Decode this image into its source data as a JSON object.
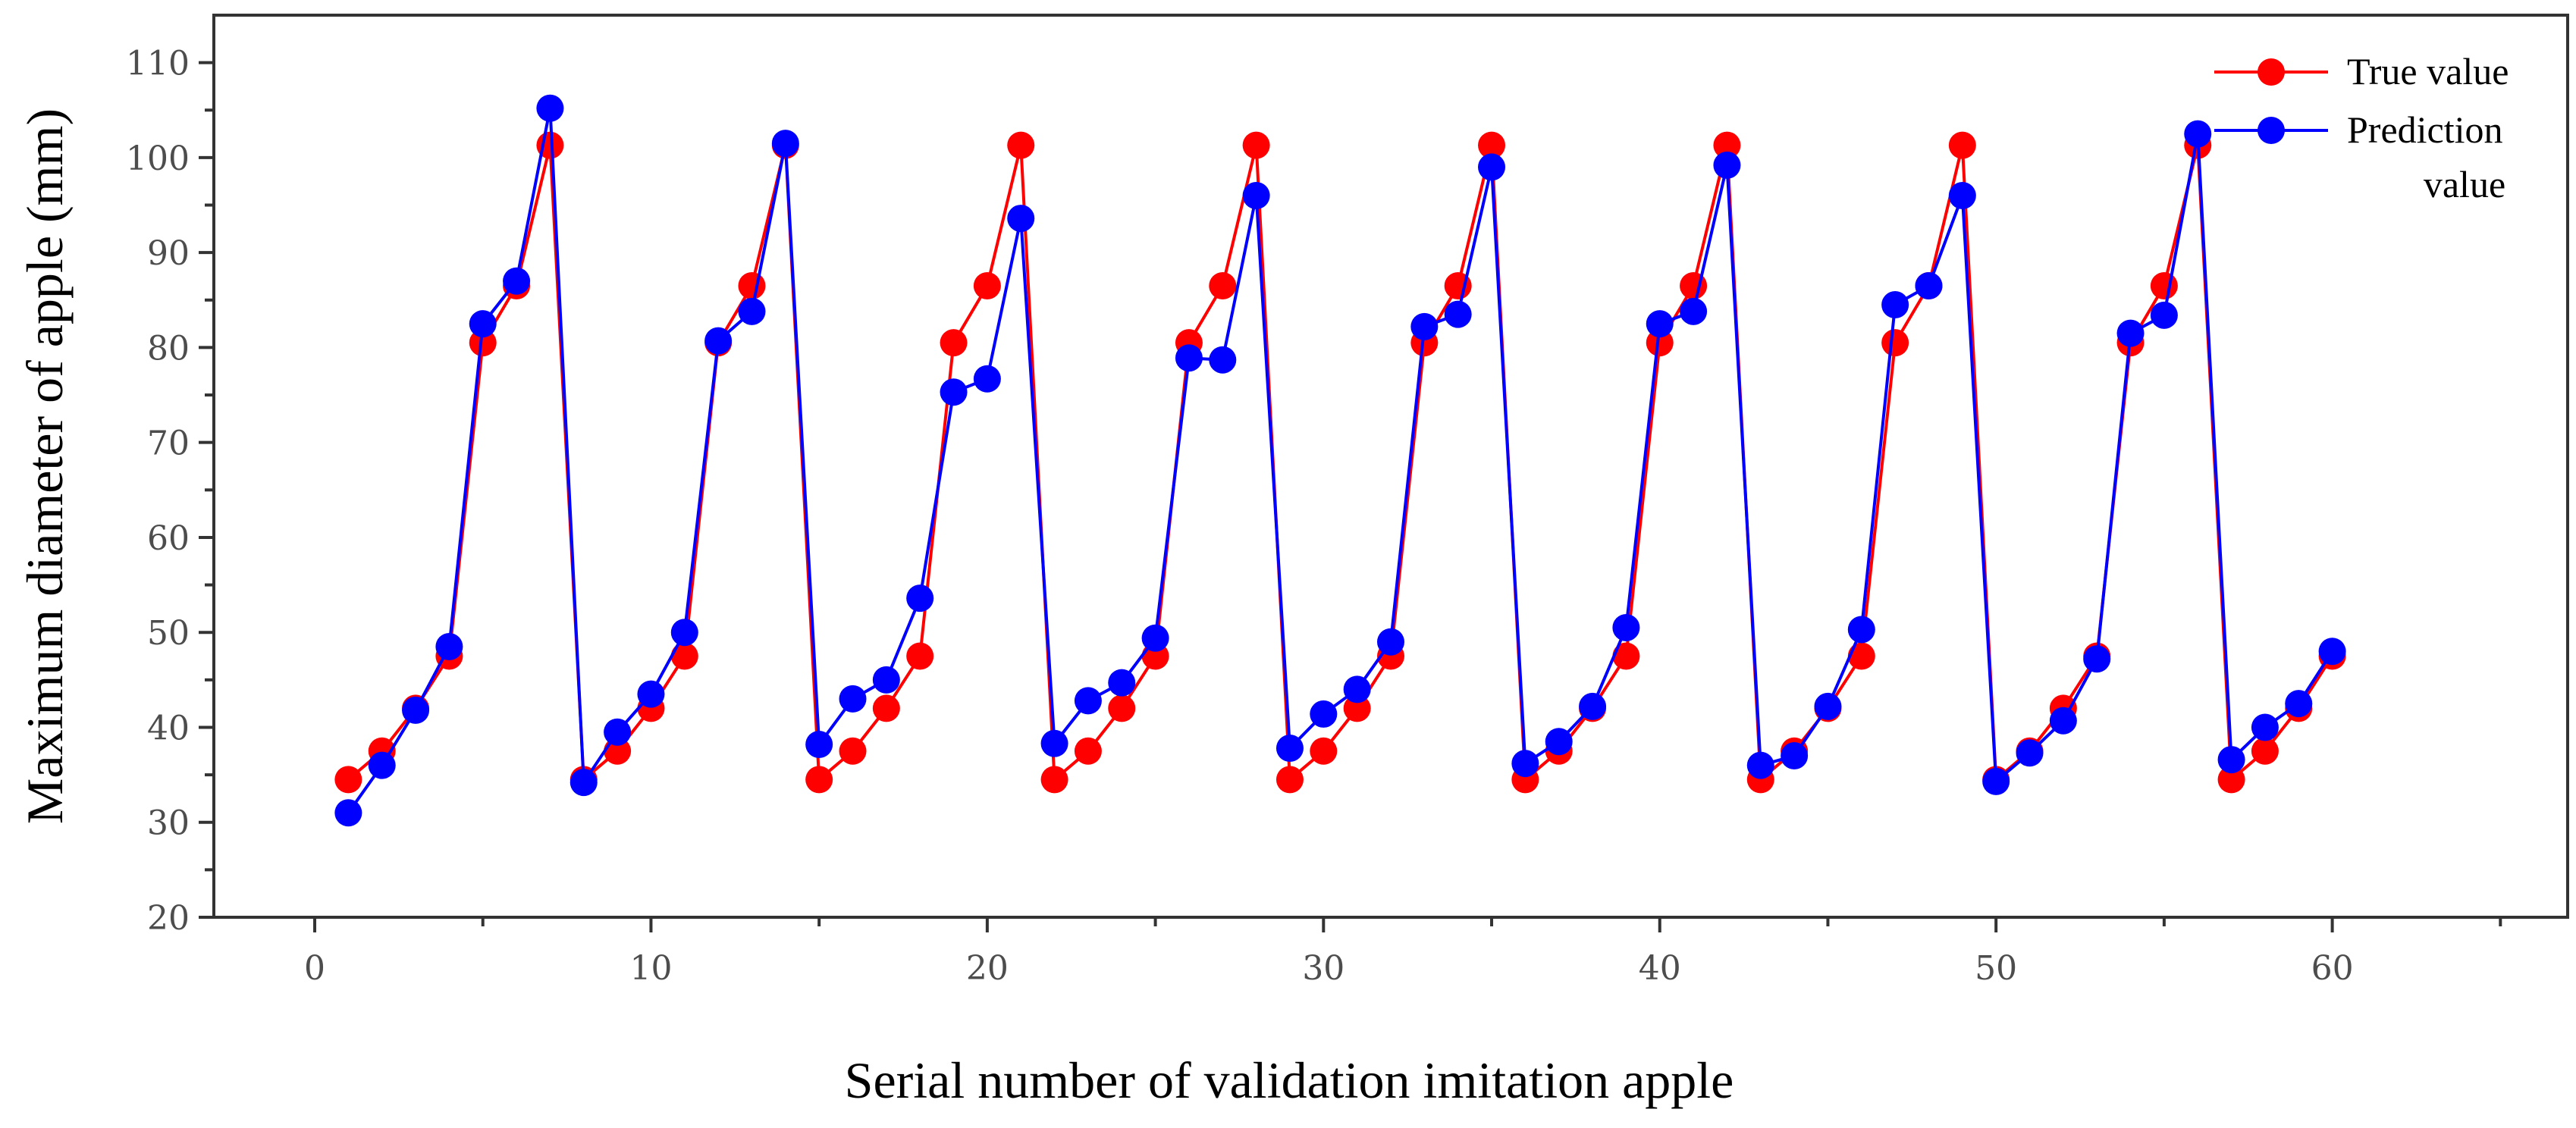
{
  "chart_data": {
    "type": "line",
    "title": "",
    "xlabel": "Serial number of validation imitation apple",
    "ylabel": "Maximum diameter of apple (mm)",
    "xlim": [
      -3,
      67
    ],
    "ylim": [
      20,
      115
    ],
    "xticks": [
      0,
      10,
      20,
      30,
      40,
      50,
      60
    ],
    "xminor_ticks": [
      5,
      15,
      25,
      35,
      45,
      55,
      65
    ],
    "yticks": [
      20,
      30,
      40,
      50,
      60,
      70,
      80,
      90,
      100,
      110
    ],
    "grid": false,
    "legend_position": "top-right",
    "x": [
      1,
      2,
      3,
      4,
      5,
      6,
      7,
      8,
      9,
      10,
      11,
      12,
      13,
      14,
      15,
      16,
      17,
      18,
      19,
      20,
      21,
      22,
      23,
      24,
      25,
      26,
      27,
      28,
      29,
      30,
      31,
      32,
      33,
      34,
      35,
      36,
      37,
      38,
      39,
      40,
      41,
      42,
      43,
      44,
      45,
      46,
      47,
      48,
      49,
      50,
      51,
      52,
      53,
      54,
      55,
      56,
      57,
      58,
      59,
      60
    ],
    "series": [
      {
        "name": "True value",
        "legend_lines": [
          "True value"
        ],
        "color": "#ff0000",
        "values": [
          34.5,
          37.5,
          42,
          47.5,
          80.5,
          86.5,
          101.3,
          34.5,
          37.5,
          42,
          47.5,
          80.5,
          86.5,
          101.3,
          34.5,
          37.5,
          42,
          47.5,
          80.5,
          86.5,
          101.3,
          34.5,
          37.5,
          42,
          47.5,
          80.5,
          86.5,
          101.3,
          34.5,
          37.5,
          42,
          47.5,
          80.5,
          86.5,
          101.3,
          34.5,
          37.5,
          42,
          47.5,
          80.5,
          86.5,
          101.3,
          34.5,
          37.5,
          42,
          47.5,
          80.5,
          86.5,
          101.3,
          34.5,
          37.5,
          42,
          47.5,
          80.5,
          86.5,
          101.3,
          34.5,
          37.5,
          42,
          47.5
        ]
      },
      {
        "name": "Prediction value",
        "legend_lines": [
          "Prediction",
          "value"
        ],
        "color": "#0000ff",
        "values": [
          31,
          36,
          41.8,
          48.5,
          82.5,
          87,
          105.2,
          34.2,
          39.5,
          43.5,
          50,
          80.7,
          83.8,
          101.5,
          38.2,
          43,
          45,
          53.6,
          75.3,
          76.7,
          93.6,
          38.3,
          42.8,
          44.7,
          49.4,
          78.9,
          78.7,
          96,
          37.8,
          41.4,
          44,
          49,
          82.2,
          83.5,
          99,
          36.2,
          38.5,
          42.2,
          50.5,
          82.5,
          83.8,
          99.2,
          36,
          37,
          42.2,
          50.3,
          84.5,
          86.5,
          96,
          34.3,
          37.3,
          40.7,
          47.2,
          81.5,
          83.4,
          102.5,
          36.6,
          40,
          42.5,
          48
        ]
      }
    ]
  }
}
